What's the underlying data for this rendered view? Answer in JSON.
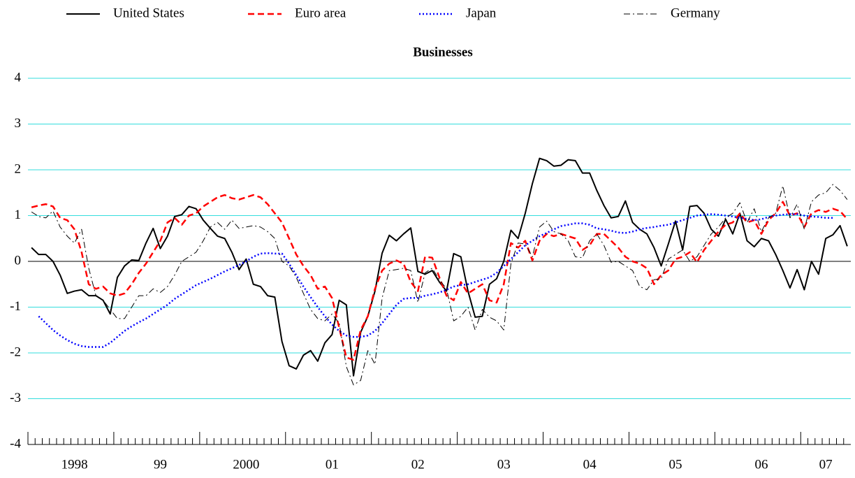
{
  "chart_data": {
    "type": "line",
    "title": "Businesses",
    "legend": "top",
    "grid": true,
    "ylim": [
      -4,
      4
    ],
    "yticks": [
      -4,
      -3,
      -2,
      -1,
      0,
      1,
      2,
      3,
      4
    ],
    "categories": [
      null,
      null,
      null,
      null,
      null,
      null,
      "1998",
      null,
      null,
      null,
      null,
      null,
      null,
      null,
      null,
      null,
      null,
      null,
      "99",
      null,
      null,
      null,
      null,
      null,
      null,
      null,
      null,
      null,
      null,
      null,
      "2000",
      null,
      null,
      null,
      null,
      null,
      null,
      null,
      null,
      null,
      null,
      null,
      "01",
      null,
      null,
      null,
      null,
      null,
      null,
      null,
      null,
      null,
      null,
      null,
      "02",
      null,
      null,
      null,
      null,
      null,
      null,
      null,
      null,
      null,
      null,
      null,
      "03",
      null,
      null,
      null,
      null,
      null,
      null,
      null,
      null,
      null,
      null,
      null,
      "04",
      null,
      null,
      null,
      null,
      null,
      null,
      null,
      null,
      null,
      null,
      null,
      "05",
      null,
      null,
      null,
      null,
      null,
      null,
      null,
      null,
      null,
      null,
      null,
      "06",
      null,
      null,
      null,
      null,
      null,
      null,
      null,
      null,
      "07",
      null,
      null,
      null
    ],
    "series": [
      {
        "name": "United States",
        "color": "#000000",
        "dash": "solid",
        "values": [
          0.3,
          0.15,
          0.15,
          0.0,
          -0.3,
          -0.7,
          -0.65,
          -0.62,
          -0.75,
          -0.75,
          -0.85,
          -1.15,
          -0.35,
          -0.1,
          0.03,
          0.02,
          0.4,
          0.72,
          0.28,
          0.55,
          0.98,
          1.02,
          1.2,
          1.15,
          0.9,
          0.72,
          0.55,
          0.5,
          0.2,
          -0.18,
          0.05,
          -0.5,
          -0.55,
          -0.75,
          -0.78,
          -1.75,
          -2.28,
          -2.35,
          -2.05,
          -1.95,
          -2.18,
          -1.78,
          -1.6,
          -0.85,
          -0.95,
          -2.5,
          -1.55,
          -1.2,
          -0.65,
          0.18,
          0.57,
          0.45,
          0.6,
          0.73,
          -0.22,
          -0.28,
          -0.2,
          -0.45,
          -0.65,
          0.17,
          0.1,
          -0.65,
          -1.22,
          -1.2,
          -0.5,
          -0.38,
          0.0,
          0.68,
          0.5,
          1.05,
          1.7,
          2.25,
          2.2,
          2.08,
          2.1,
          2.22,
          2.2,
          1.93,
          1.93,
          1.55,
          1.22,
          0.95,
          0.98,
          1.32,
          0.85,
          0.7,
          0.6,
          0.3,
          -0.1,
          0.38,
          0.88,
          0.25,
          1.2,
          1.22,
          1.05,
          0.7,
          0.55,
          0.92,
          0.6,
          1.05,
          0.45,
          0.32,
          0.5,
          0.45,
          0.15,
          -0.2,
          -0.58,
          -0.18,
          -0.62,
          0.0,
          -0.28,
          0.5,
          0.58,
          0.78,
          0.33
        ]
      },
      {
        "name": "Euro area",
        "color": "#ff0000",
        "dash": "dashed",
        "values": [
          1.18,
          1.22,
          1.25,
          1.2,
          0.95,
          0.9,
          0.7,
          0.2,
          -0.5,
          -0.6,
          -0.55,
          -0.7,
          -0.75,
          -0.7,
          -0.5,
          -0.25,
          -0.05,
          0.2,
          0.45,
          0.85,
          0.95,
          0.8,
          1.0,
          1.05,
          1.2,
          1.3,
          1.4,
          1.45,
          1.38,
          1.35,
          1.4,
          1.45,
          1.4,
          1.25,
          1.05,
          0.85,
          0.5,
          0.15,
          -0.1,
          -0.3,
          -0.6,
          -0.55,
          -0.8,
          -1.45,
          -2.1,
          -2.15,
          -1.5,
          -1.2,
          -0.6,
          -0.2,
          -0.05,
          0.02,
          -0.05,
          -0.45,
          -0.65,
          0.1,
          0.08,
          -0.35,
          -0.75,
          -0.85,
          -0.45,
          -0.7,
          -0.6,
          -0.5,
          -0.85,
          -0.9,
          -0.5,
          0.4,
          0.3,
          0.45,
          0.02,
          0.45,
          0.6,
          0.55,
          0.6,
          0.55,
          0.5,
          0.25,
          0.35,
          0.6,
          0.6,
          0.45,
          0.3,
          0.1,
          0.0,
          -0.05,
          -0.15,
          -0.5,
          -0.3,
          -0.2,
          0.05,
          0.1,
          0.2,
          -0.02,
          0.25,
          0.45,
          0.65,
          0.8,
          0.85,
          1.05,
          0.85,
          0.9,
          0.6,
          0.9,
          1.05,
          1.3,
          1.0,
          1.05,
          0.75,
          1.05,
          1.12,
          1.08,
          1.15,
          1.1,
          0.92
        ]
      },
      {
        "name": "Japan",
        "color": "#0000ff",
        "dash": "dotted",
        "values": [
          null,
          -1.2,
          -1.35,
          -1.5,
          -1.62,
          -1.72,
          -1.8,
          -1.85,
          -1.87,
          -1.87,
          -1.87,
          -1.78,
          -1.65,
          -1.52,
          -1.42,
          -1.33,
          -1.25,
          -1.15,
          -1.05,
          -0.95,
          -0.82,
          -0.72,
          -0.62,
          -0.52,
          -0.45,
          -0.38,
          -0.3,
          -0.22,
          -0.15,
          -0.08,
          0.0,
          0.1,
          0.17,
          0.18,
          0.17,
          0.17,
          -0.05,
          -0.3,
          -0.55,
          -0.78,
          -1.0,
          -1.2,
          -1.38,
          -1.52,
          -1.62,
          -1.65,
          -1.65,
          -1.62,
          -1.52,
          -1.35,
          -1.15,
          -0.95,
          -0.82,
          -0.8,
          -0.8,
          -0.75,
          -0.72,
          -0.68,
          -0.62,
          -0.55,
          -0.52,
          -0.5,
          -0.45,
          -0.4,
          -0.35,
          -0.25,
          -0.1,
          0.05,
          0.2,
          0.35,
          0.45,
          0.55,
          0.62,
          0.7,
          0.77,
          0.8,
          0.83,
          0.83,
          0.8,
          0.72,
          0.7,
          0.67,
          0.63,
          0.62,
          0.65,
          0.7,
          0.73,
          0.75,
          0.78,
          0.8,
          0.85,
          0.9,
          0.95,
          1.0,
          1.02,
          1.03,
          1.02,
          1.0,
          0.98,
          0.95,
          0.93,
          0.9,
          0.92,
          0.97,
          1.0,
          1.02,
          1.03,
          1.03,
          1.0,
          0.98,
          0.97,
          0.95,
          0.95,
          null,
          null
        ]
      },
      {
        "name": "Germany",
        "color": "#000000",
        "dash": "dashdot",
        "values": [
          1.08,
          0.98,
          0.95,
          1.1,
          0.75,
          0.55,
          0.4,
          0.7,
          -0.15,
          -0.75,
          -0.85,
          -1.05,
          -1.25,
          -1.25,
          -1.0,
          -0.75,
          -0.75,
          -0.6,
          -0.68,
          -0.55,
          -0.3,
          0.0,
          0.1,
          0.2,
          0.45,
          0.75,
          0.85,
          0.7,
          0.9,
          0.72,
          0.75,
          0.78,
          0.75,
          0.65,
          0.5,
          0.0,
          -0.1,
          -0.35,
          -0.7,
          -1.05,
          -1.25,
          -1.3,
          -1.15,
          -1.35,
          -2.3,
          -2.7,
          -2.6,
          -1.95,
          -2.25,
          -0.8,
          -0.2,
          -0.18,
          -0.15,
          -0.2,
          -0.9,
          -0.25,
          -0.15,
          -0.4,
          -0.6,
          -1.3,
          -1.2,
          -1.0,
          -1.5,
          -1.05,
          -1.22,
          -1.3,
          -1.5,
          -0.05,
          0.4,
          0.38,
          0.1,
          0.75,
          0.88,
          0.65,
          0.6,
          0.45,
          0.1,
          0.08,
          0.45,
          0.6,
          0.35,
          -0.02,
          0.0,
          -0.1,
          -0.2,
          -0.55,
          -0.62,
          -0.4,
          -0.38,
          0.05,
          0.15,
          0.25,
          0.0,
          0.1,
          0.35,
          0.6,
          0.75,
          0.95,
          1.05,
          1.28,
          0.85,
          1.15,
          0.65,
          0.95,
          1.05,
          1.65,
          0.95,
          1.25,
          0.7,
          1.3,
          1.45,
          1.5,
          1.68,
          1.55,
          1.35
        ]
      }
    ]
  }
}
